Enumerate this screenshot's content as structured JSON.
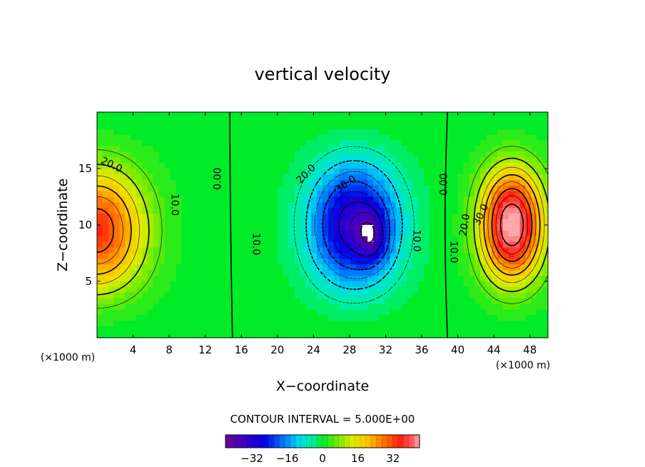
{
  "chart_data": {
    "type": "heatmap",
    "title": "vertical velocity",
    "xlabel": "X−coordinate",
    "ylabel": "Z−coordinate",
    "x_unit_left": "(×1000 m)",
    "x_unit_right": "(×1000 m)",
    "xlim": [
      0,
      50
    ],
    "ylim": [
      0,
      20
    ],
    "xticks": [
      4,
      8,
      12,
      16,
      20,
      24,
      28,
      32,
      36,
      40,
      44,
      48
    ],
    "yticks": [
      5,
      10,
      15
    ],
    "contour_interval_text": "CONTOUR INTERVAL = 5.000E+00",
    "colorbar": {
      "range": [
        -44,
        44
      ],
      "ticks": [
        -32,
        -16,
        0,
        16,
        32
      ]
    },
    "features": [
      {
        "name": "updraft-left",
        "x": 0,
        "z": 9.5,
        "peak": 34,
        "sx": 5.2,
        "sz": 5.5
      },
      {
        "name": "downdraft-center",
        "x": 28.5,
        "z": 10,
        "peak": -34,
        "sx": 4.8,
        "sz": 5.4
      },
      {
        "name": "downdraft-core",
        "x": 30.5,
        "z": 9,
        "peak": -14,
        "sx": 1.6,
        "sz": 2.2
      },
      {
        "name": "updraft-right",
        "x": 46,
        "z": 10,
        "peak": 46,
        "sx": 3.4,
        "sz": 5.0
      }
    ],
    "contour_labels": [
      {
        "text": "20.0",
        "x": 1.6,
        "z": 15.3,
        "rot": 25
      },
      {
        "text": "10.0",
        "x": 8.6,
        "z": 11.8,
        "rot": 90
      },
      {
        "text": "0.00",
        "x": 13.4,
        "z": 14.1,
        "rot": -90
      },
      {
        "text": "10.0",
        "x": 17.6,
        "z": 8.3,
        "rot": 90
      },
      {
        "text": "20.0",
        "x": 23.2,
        "z": 14.5,
        "rot": -45
      },
      {
        "text": "30.0",
        "x": 27.6,
        "z": 13.6,
        "rot": -35
      },
      {
        "text": "10.0",
        "x": 35.4,
        "z": 8.6,
        "rot": 90
      },
      {
        "text": "0.00",
        "x": 38.5,
        "z": 13.6,
        "rot": -90
      },
      {
        "text": "10.0",
        "x": 39.5,
        "z": 7.6,
        "rot": 90
      },
      {
        "text": "20.0",
        "x": 40.8,
        "z": 10.0,
        "rot": -80
      },
      {
        "text": "30.0",
        "x": 42.6,
        "z": 10.9,
        "rot": -65
      }
    ]
  }
}
